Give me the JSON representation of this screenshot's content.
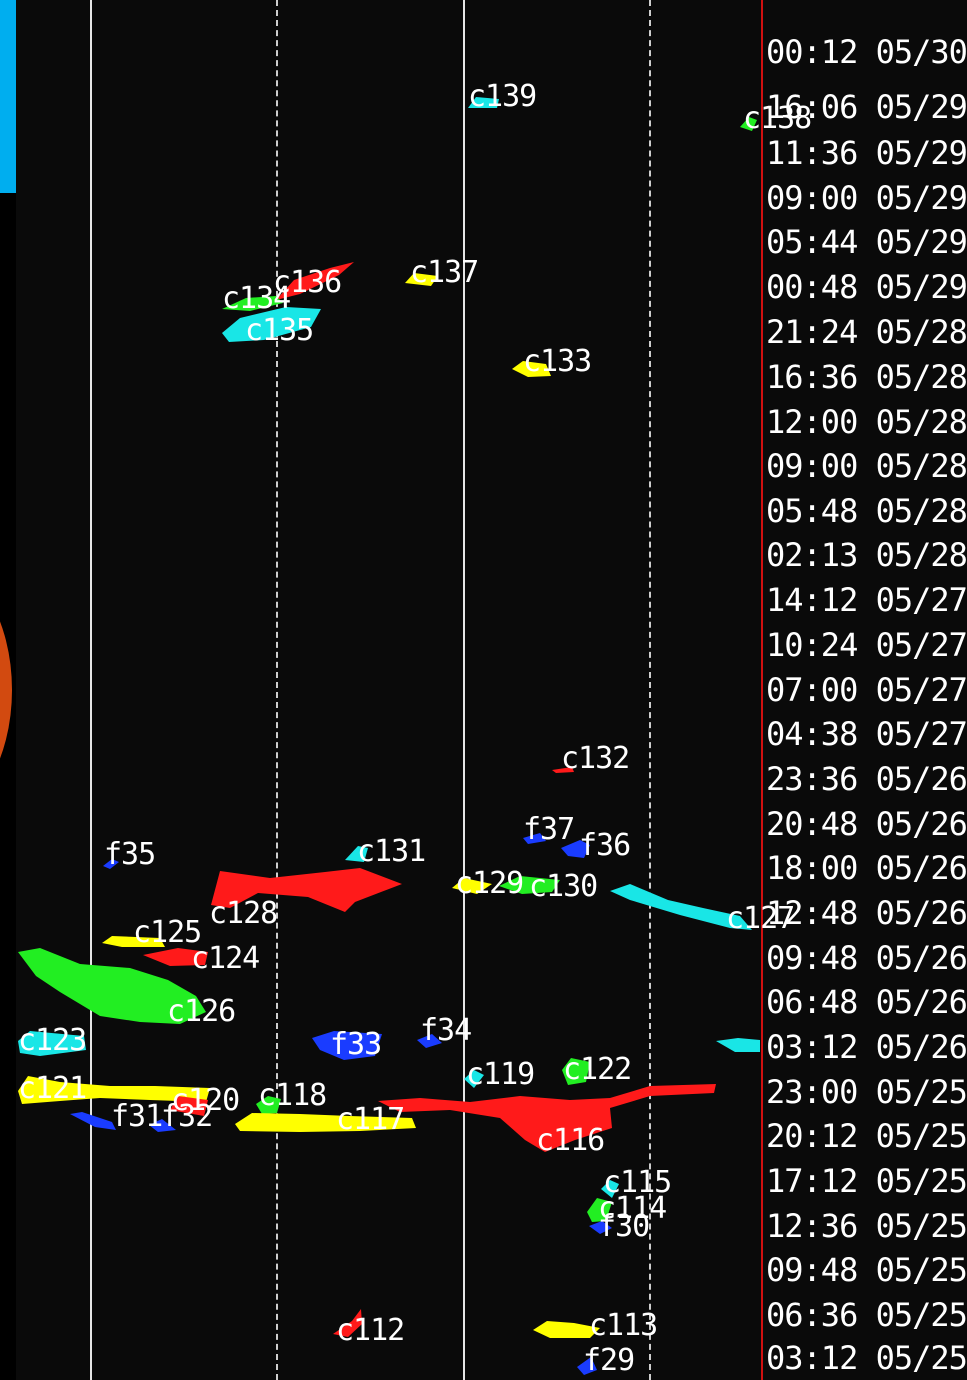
{
  "colors": {
    "background": "#0a0a0a",
    "grid_line": "#e6e6e6",
    "grid_dash": "#cfcfcf",
    "time_separator": "#d01010",
    "label_text": "#ffffff",
    "edge_bar": "#00aeef",
    "red": "#ff1a1a",
    "green": "#22ee22",
    "cyan": "#19e6e6",
    "yellow": "#ffff00",
    "blue": "#1a3cff",
    "globe": "#d24a10"
  },
  "time_axis": {
    "labels": [
      "00:12 05/30",
      "16:06 05/29",
      "11:36 05/29",
      "09:00 05/29",
      "05:44 05/29",
      "00:48 05/29",
      "21:24 05/28",
      "16:36 05/28",
      "12:00 05/28",
      "09:00 05/28",
      "05:48 05/28",
      "02:13 05/28",
      "14:12 05/27",
      "10:24 05/27",
      "07:00 05/27",
      "04:38 05/27",
      "23:36 05/26",
      "20:48 05/26",
      "18:00 05/26",
      "12:48 05/26",
      "09:48 05/26",
      "06:48 05/26",
      "03:12 05/26",
      "23:00 05/25",
      "20:12 05/25",
      "17:12 05/25",
      "12:36 05/25",
      "09:48 05/25",
      "06:36 05/25",
      "03:12 05/25"
    ]
  },
  "features": [
    {
      "id": "c139",
      "label": "c139",
      "color": "cyan"
    },
    {
      "id": "c138",
      "label": "c138",
      "color": "green"
    },
    {
      "id": "c136",
      "label": "c136",
      "color": "red"
    },
    {
      "id": "c137",
      "label": "c137",
      "color": "yellow"
    },
    {
      "id": "c134",
      "label": "c134",
      "color": "green"
    },
    {
      "id": "c135",
      "label": "c135",
      "color": "cyan"
    },
    {
      "id": "c133",
      "label": "c133",
      "color": "yellow"
    },
    {
      "id": "c132",
      "label": "c132",
      "color": "red"
    },
    {
      "id": "f37",
      "label": "f37",
      "color": "blue"
    },
    {
      "id": "f36",
      "label": "f36",
      "color": "blue"
    },
    {
      "id": "f35",
      "label": "f35",
      "color": "blue"
    },
    {
      "id": "c131",
      "label": "c131",
      "color": "cyan"
    },
    {
      "id": "c129",
      "label": "c129",
      "color": "yellow"
    },
    {
      "id": "c130",
      "label": "c130",
      "color": "green"
    },
    {
      "id": "c128",
      "label": "c128",
      "color": "red"
    },
    {
      "id": "c127",
      "label": "c127",
      "color": "cyan"
    },
    {
      "id": "c125",
      "label": "c125",
      "color": "yellow"
    },
    {
      "id": "c124",
      "label": "c124",
      "color": "red"
    },
    {
      "id": "c126",
      "label": "c126",
      "color": "green"
    },
    {
      "id": "c123",
      "label": "c123",
      "color": "cyan"
    },
    {
      "id": "f33",
      "label": "f33",
      "color": "blue"
    },
    {
      "id": "f34",
      "label": "f34",
      "color": "blue"
    },
    {
      "id": "c119",
      "label": "c119",
      "color": "cyan"
    },
    {
      "id": "c122",
      "label": "c122",
      "color": "green"
    },
    {
      "id": "c121",
      "label": "c121",
      "color": "yellow"
    },
    {
      "id": "c120",
      "label": "c120",
      "color": "red"
    },
    {
      "id": "c118",
      "label": "c118",
      "color": "green"
    },
    {
      "id": "f31",
      "label": "f31",
      "color": "blue"
    },
    {
      "id": "f32",
      "label": "f32",
      "color": "blue"
    },
    {
      "id": "c117",
      "label": "c117",
      "color": "yellow"
    },
    {
      "id": "c116",
      "label": "c116",
      "color": "red"
    },
    {
      "id": "c115",
      "label": "c115",
      "color": "cyan"
    },
    {
      "id": "c114",
      "label": "c114",
      "color": "green"
    },
    {
      "id": "f30",
      "label": "f30",
      "color": "blue"
    },
    {
      "id": "c112",
      "label": "c112",
      "color": "red"
    },
    {
      "id": "c113",
      "label": "c113",
      "color": "yellow"
    },
    {
      "id": "f29",
      "label": "f29",
      "color": "blue"
    }
  ]
}
